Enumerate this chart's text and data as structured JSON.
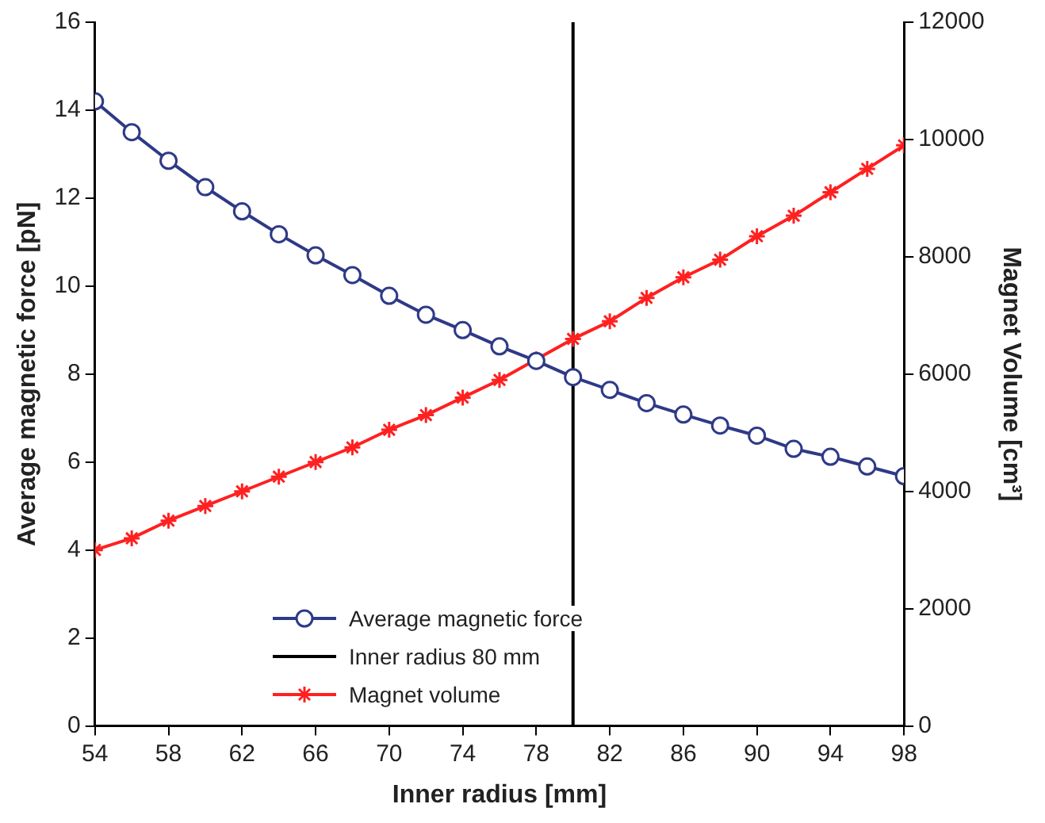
{
  "chart_data": {
    "type": "line",
    "xlabel": "Inner radius [mm]",
    "ylabel": "Average magnetic force [pN]",
    "y2label": "Magnet Volume [cm³]",
    "x": [
      54,
      56,
      58,
      60,
      62,
      64,
      66,
      68,
      70,
      72,
      74,
      76,
      78,
      80,
      82,
      84,
      86,
      88,
      90,
      92,
      94,
      96,
      98
    ],
    "series": [
      {
        "name": "Average magnetic force",
        "color": "#2e3a87",
        "marker": "circle",
        "values": [
          14.2,
          13.5,
          12.85,
          12.25,
          11.7,
          11.18,
          10.7,
          10.25,
          9.78,
          9.35,
          9.0,
          8.63,
          8.3,
          7.93,
          7.64,
          7.34,
          7.08,
          6.83,
          6.6,
          6.3,
          6.12,
          5.9,
          5.68
        ]
      },
      {
        "name": "Magnet volume",
        "color": "#ff2020",
        "marker": "cross",
        "axis": "y2",
        "values": [
          3000,
          3200,
          3500,
          3750,
          4000,
          4250,
          4500,
          4750,
          5050,
          5300,
          5600,
          5900,
          6250,
          6600,
          6900,
          7300,
          7650,
          7950,
          8350,
          8700,
          9100,
          9500,
          9900
        ]
      }
    ],
    "ref_lines": [
      {
        "axis": "x",
        "value": 80,
        "label": "Inner radius 80 mm",
        "color": "#000000"
      }
    ],
    "xlim": [
      54,
      98
    ],
    "xticks": [
      54,
      58,
      62,
      66,
      70,
      74,
      78,
      82,
      86,
      90,
      94,
      98
    ],
    "ylim": [
      0,
      16
    ],
    "yticks": [
      0,
      2,
      4,
      6,
      8,
      10,
      12,
      14,
      16
    ],
    "y2lim": [
      0,
      12000
    ],
    "y2ticks": [
      0,
      2000,
      4000,
      6000,
      8000,
      10000,
      12000
    ],
    "grid": false,
    "legend": "bottom"
  }
}
